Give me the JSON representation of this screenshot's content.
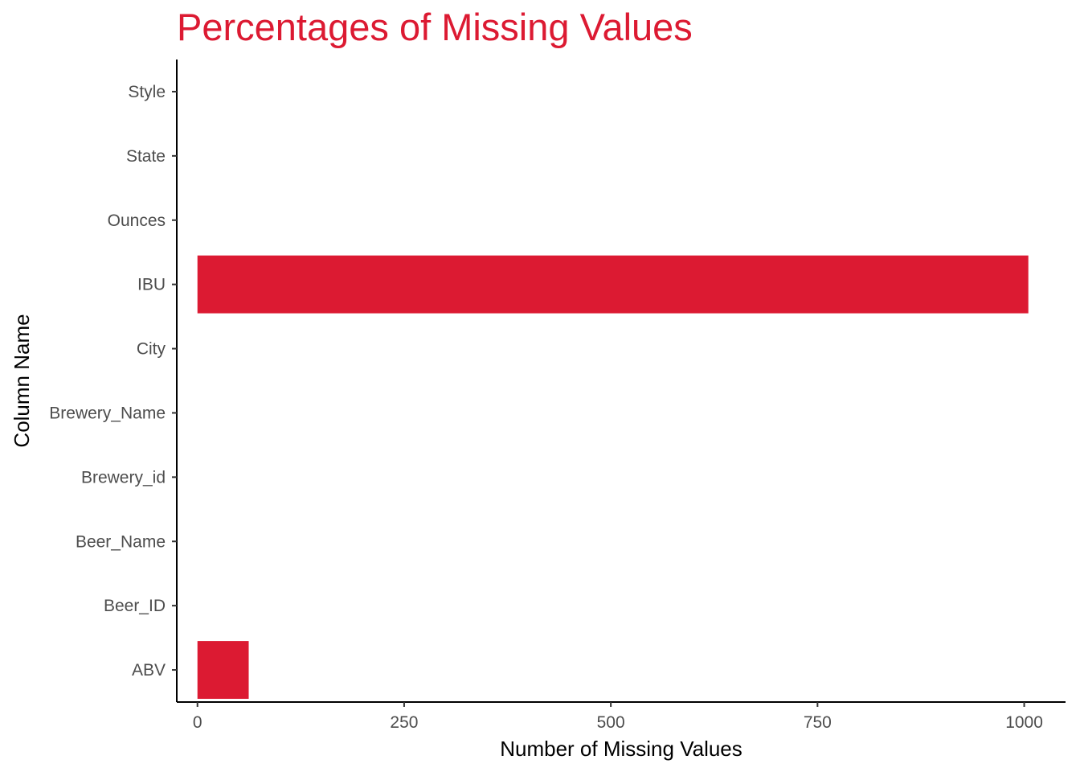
{
  "chart_data": {
    "type": "bar",
    "orientation": "horizontal",
    "title": "Percentages of Missing Values",
    "xlabel": "Number of Missing Values",
    "ylabel": "Column Name",
    "categories": [
      "ABV",
      "Beer_ID",
      "Beer_Name",
      "Brewery_id",
      "Brewery_Name",
      "City",
      "IBU",
      "Ounces",
      "State",
      "Style"
    ],
    "values": [
      62,
      0,
      0,
      0,
      0,
      0,
      1005,
      0,
      0,
      0
    ],
    "xlim": [
      -25,
      1050
    ],
    "xticks": [
      0,
      250,
      500,
      750,
      1000
    ],
    "xtick_labels": [
      "0",
      "250",
      "500",
      "750",
      "1000"
    ],
    "bar_color": "#dc1a32",
    "title_color": "#dc1a32",
    "grid": false,
    "legend": "none"
  }
}
